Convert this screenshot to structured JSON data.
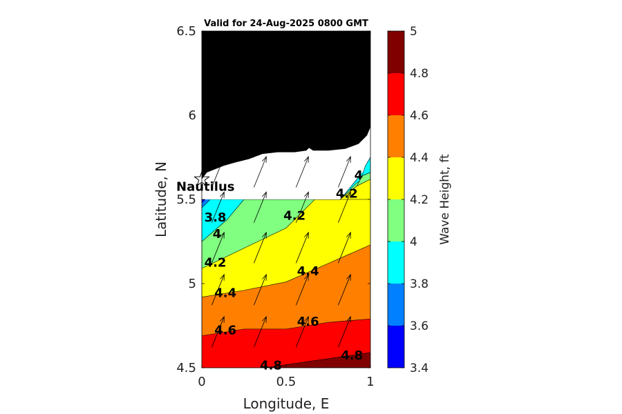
{
  "title": "Valid for 24-Aug-2025 0800 GMT",
  "xlabel": "Longitude, E",
  "ylabel": "Latitude, N",
  "colorbar_label": "Wave Height, ft",
  "x_ticks": [
    "0",
    "0.5",
    "1"
  ],
  "y_ticks": [
    "4.5",
    "5",
    "5.5",
    "6",
    "6.5"
  ],
  "colorbar_ticks": [
    "3.4",
    "3.6",
    "3.8",
    "4",
    "4.2",
    "4.4",
    "4.6",
    "4.8",
    "5"
  ],
  "colors": {
    "land": "#000000",
    "no_data": "#ffffff",
    "levels": [
      {
        "from": 3.4,
        "to": 3.6,
        "color": "#0000ff"
      },
      {
        "from": 3.6,
        "to": 3.8,
        "color": "#0080ff"
      },
      {
        "from": 3.8,
        "to": 4.0,
        "color": "#00ffff"
      },
      {
        "from": 4.0,
        "to": 4.2,
        "color": "#80ff80"
      },
      {
        "from": 4.2,
        "to": 4.4,
        "color": "#ffff00"
      },
      {
        "from": 4.4,
        "to": 4.6,
        "color": "#ff8000"
      },
      {
        "from": 4.6,
        "to": 4.8,
        "color": "#ff0000"
      },
      {
        "from": 4.8,
        "to": 5.0,
        "color": "#800000"
      }
    ]
  },
  "station": {
    "name": "Nautilus",
    "lon": 0.0,
    "lat": 5.62,
    "icon": "star-icon"
  },
  "chart_data": {
    "type": "heatmap",
    "xlim": [
      0,
      1
    ],
    "ylim": [
      4.5,
      6.5
    ],
    "clim": [
      3.4,
      5.0
    ],
    "contour_labels": [
      {
        "text": "3.8",
        "lon": 0.08,
        "lat": 5.39
      },
      {
        "text": "4",
        "lon": 0.09,
        "lat": 5.29
      },
      {
        "text": "4.2",
        "lon": 0.08,
        "lat": 5.12
      },
      {
        "text": "4.4",
        "lon": 0.14,
        "lat": 4.94
      },
      {
        "text": "4.6",
        "lon": 0.14,
        "lat": 4.72
      },
      {
        "text": "4.8",
        "lon": 0.41,
        "lat": 4.51
      },
      {
        "text": "4.2",
        "lon": 0.55,
        "lat": 5.4
      },
      {
        "text": "4.4",
        "lon": 0.63,
        "lat": 5.07
      },
      {
        "text": "4.6",
        "lon": 0.63,
        "lat": 4.77
      },
      {
        "text": "4.8",
        "lon": 0.89,
        "lat": 4.57
      },
      {
        "text": "4.2",
        "lon": 0.86,
        "lat": 5.53
      },
      {
        "text": "4",
        "lon": 0.93,
        "lat": 5.64
      }
    ],
    "contour_bands": [
      {
        "level": 4.8,
        "boundary": [
          [
            0.37,
            4.5
          ],
          [
            1.0,
            4.59
          ]
        ]
      },
      {
        "level": 4.6,
        "boundary": [
          [
            0.0,
            4.69
          ],
          [
            0.25,
            4.73
          ],
          [
            0.5,
            4.73
          ],
          [
            0.75,
            4.77
          ],
          [
            1.0,
            4.79
          ]
        ]
      },
      {
        "level": 4.4,
        "boundary": [
          [
            0.0,
            4.92
          ],
          [
            0.25,
            4.96
          ],
          [
            0.5,
            5.01
          ],
          [
            0.75,
            5.12
          ],
          [
            1.0,
            5.23
          ]
        ]
      },
      {
        "level": 4.2,
        "boundary": [
          [
            0.0,
            5.09
          ],
          [
            0.25,
            5.21
          ],
          [
            0.5,
            5.33
          ],
          [
            0.67,
            5.5
          ],
          [
            0.82,
            5.5
          ],
          [
            0.92,
            5.58
          ],
          [
            1.0,
            5.62
          ]
        ]
      },
      {
        "level": 4.0,
        "boundary": [
          [
            0.0,
            5.25
          ],
          [
            0.15,
            5.38
          ],
          [
            0.25,
            5.5
          ],
          [
            0.82,
            5.5
          ],
          [
            0.91,
            5.59
          ],
          [
            1.0,
            5.66
          ]
        ]
      },
      {
        "level": 3.8,
        "boundary": [
          [
            0.0,
            5.45
          ],
          [
            0.05,
            5.5
          ],
          [
            0.82,
            5.5
          ],
          [
            0.92,
            5.62
          ],
          [
            1.0,
            5.75
          ]
        ]
      },
      {
        "level": 3.6,
        "boundary": [
          [
            0.0,
            5.48
          ],
          [
            0.02,
            5.5
          ]
        ]
      }
    ],
    "arrow_rows_lat": [
      4.72,
      4.97,
      5.22,
      5.46,
      5.67
    ],
    "arrow_cols_lon": [
      0.1,
      0.35,
      0.6,
      0.85
    ],
    "arrow_direction_deg_from_north": 22
  }
}
